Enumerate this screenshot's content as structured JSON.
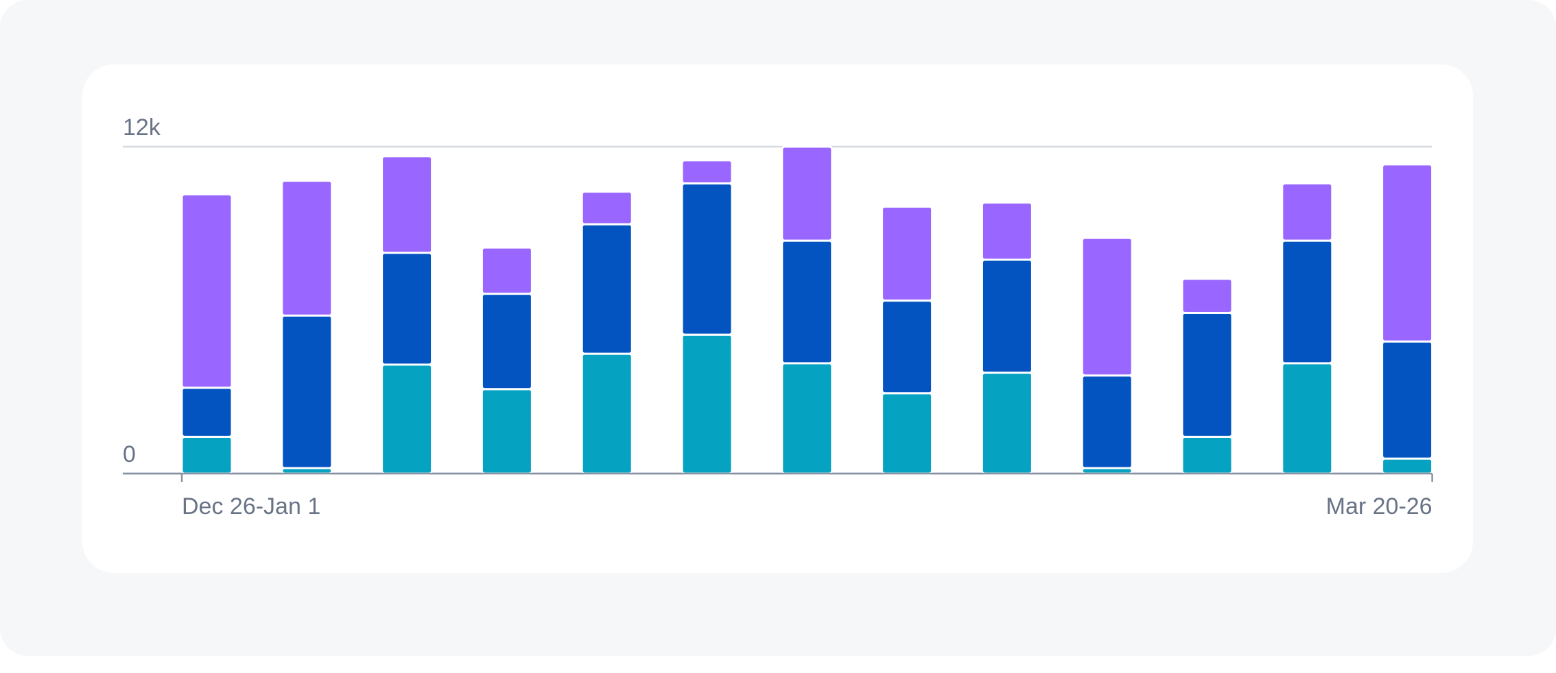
{
  "chart_data": {
    "type": "stacked-bar",
    "categories": [
      "Dec 26-Jan 1",
      null,
      null,
      null,
      null,
      null,
      null,
      null,
      null,
      null,
      null,
      null,
      "Mar 20-26"
    ],
    "series": [
      {
        "color": "#05a2c2",
        "values": [
          1350,
          200,
          4000,
          3100,
          4400,
          5100,
          4050,
          2950,
          3700,
          200,
          1350,
          4050,
          550
        ]
      },
      {
        "color": "#0353c1",
        "values": [
          1800,
          5600,
          4100,
          3500,
          4750,
          5550,
          4500,
          3400,
          4150,
          3400,
          4550,
          4500,
          4300
        ]
      },
      {
        "color": "#9966ff",
        "values": [
          7100,
          4950,
          3550,
          1700,
          1200,
          850,
          3450,
          3450,
          2100,
          5050,
          1250,
          2100,
          6500
        ]
      }
    ],
    "ylim": [
      0,
      12000
    ],
    "yticks": [
      0,
      {
        "value": 12000,
        "label": "12k"
      }
    ],
    "grid": true
  }
}
